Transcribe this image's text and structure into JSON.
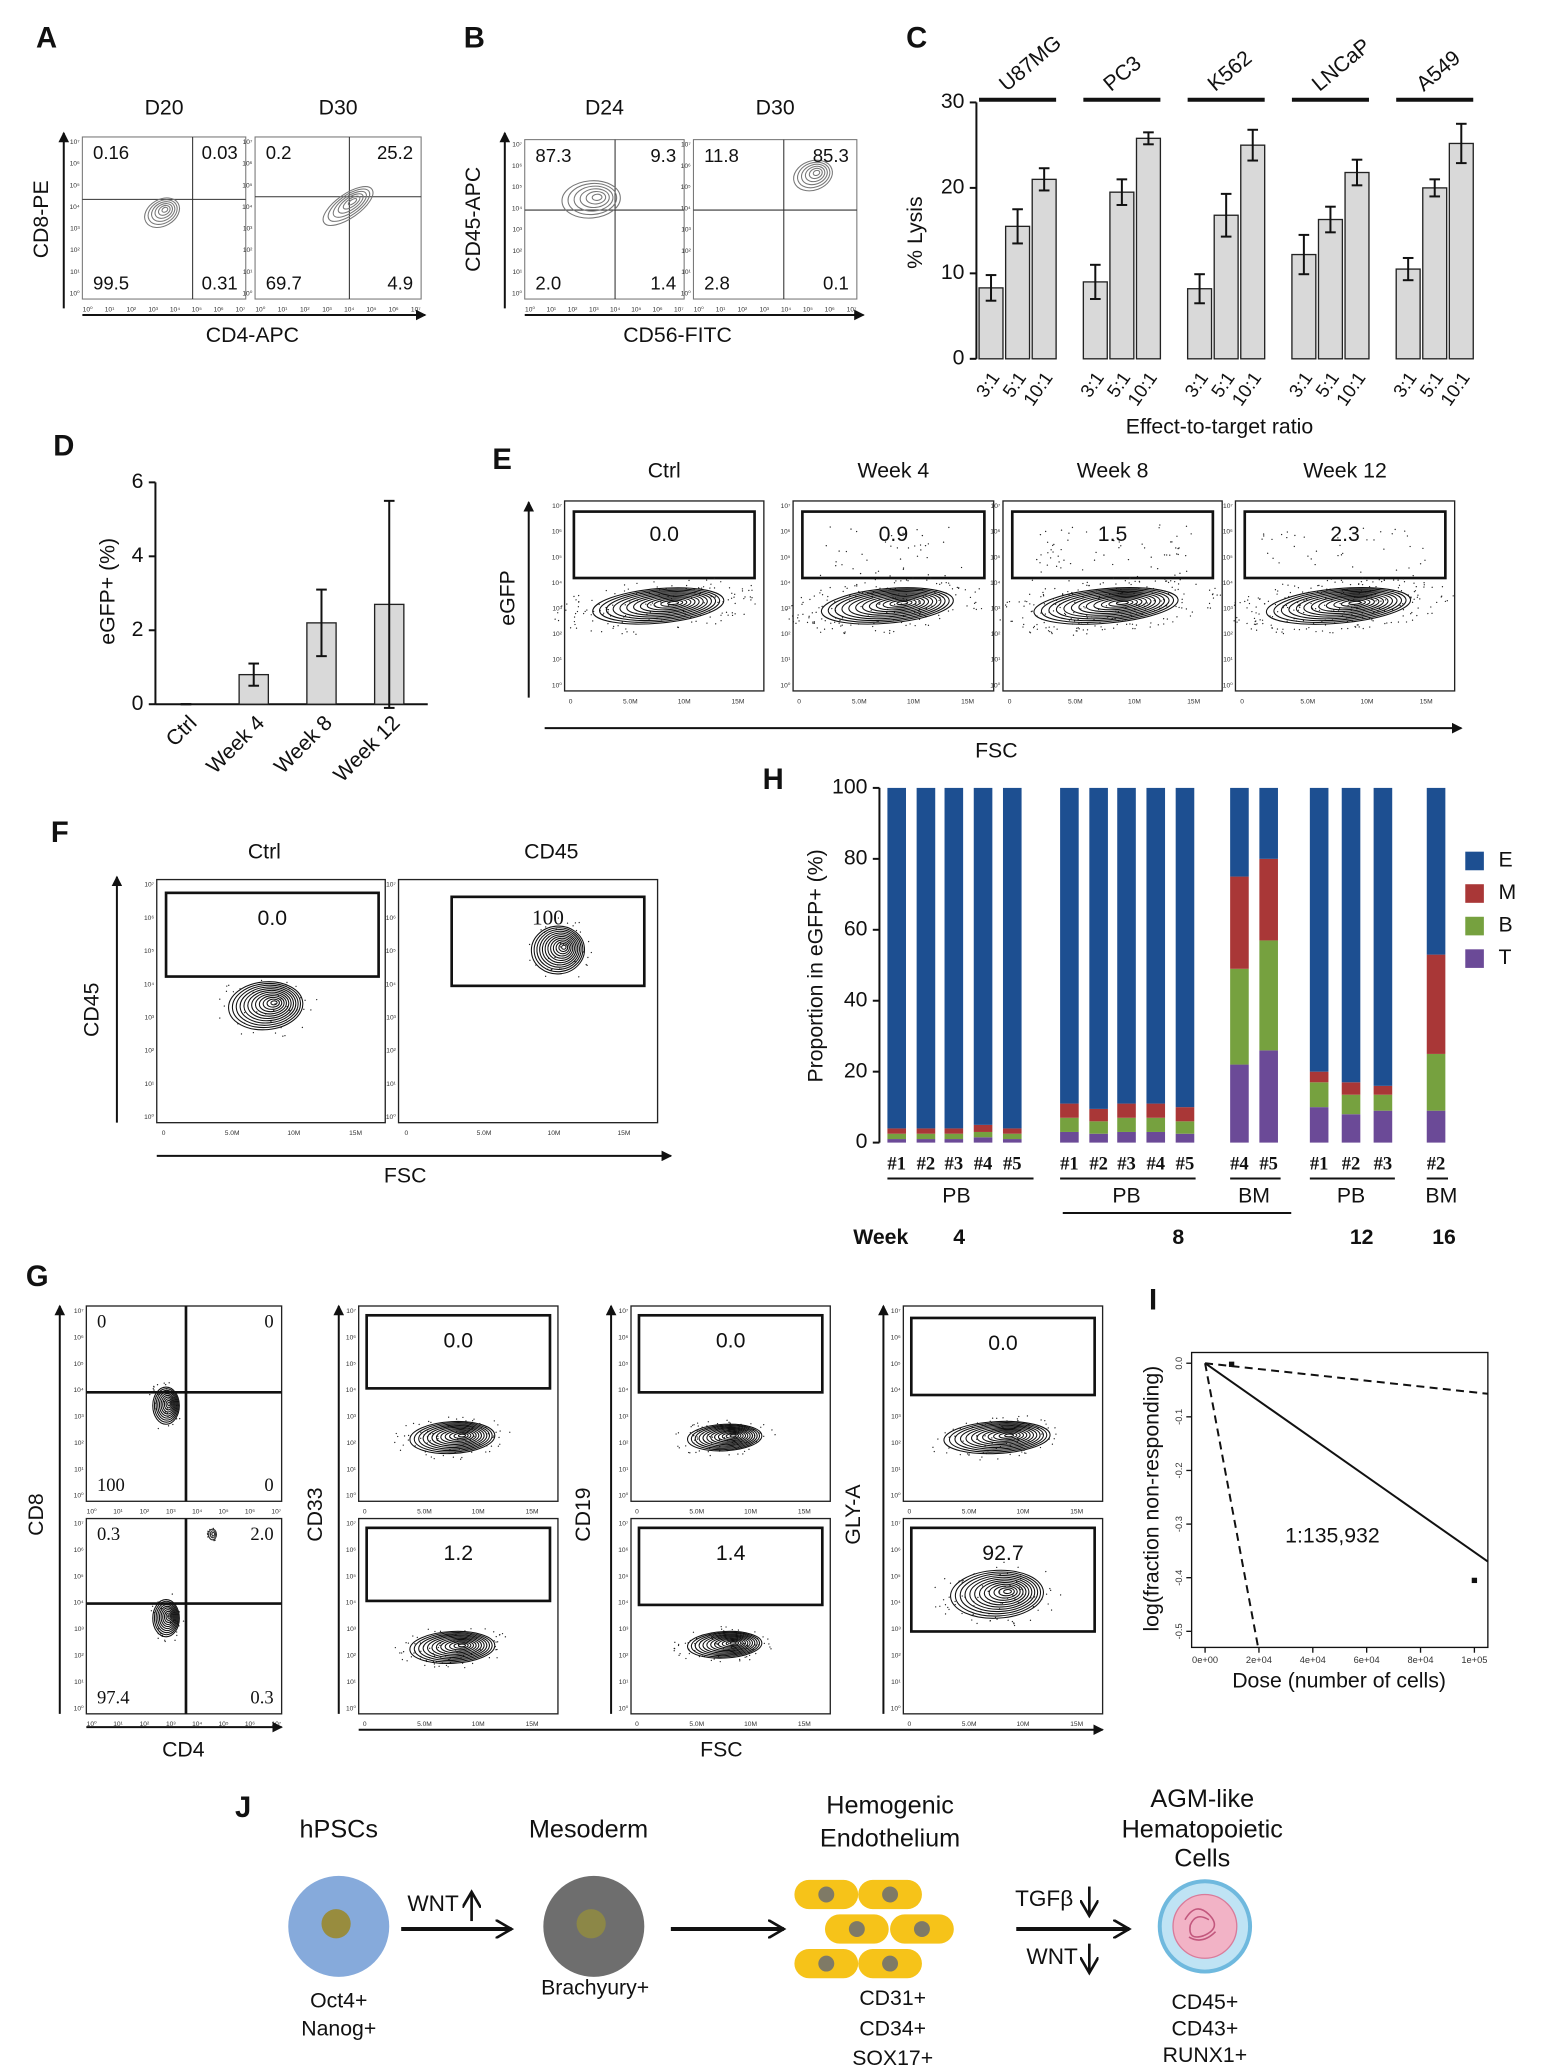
{
  "panel_labels": [
    "A",
    "B",
    "C",
    "D",
    "E",
    "F",
    "G",
    "H",
    "I",
    "J"
  ],
  "flow_ticks": {
    "log": [
      "10⁰",
      "10¹",
      "10²",
      "10³",
      "10⁴",
      "10⁵",
      "10⁶",
      "10⁷"
    ],
    "fsc": [
      "0",
      "5.0M",
      "10M",
      "15M"
    ]
  },
  "panel_a": {
    "titles": [
      "D20",
      "D30"
    ],
    "y_label": "CD8-PE",
    "x_label": "CD4-APC",
    "quadrants": [
      [
        "0.16",
        "0.03",
        "99.5",
        "0.31"
      ],
      [
        "0.2",
        "25.2",
        "69.7",
        "4.9"
      ]
    ]
  },
  "panel_b": {
    "titles": [
      "D24",
      "D30"
    ],
    "y_label": "CD45-APC",
    "x_label": "CD56-FITC",
    "quadrants": [
      [
        "87.3",
        "9.3",
        "2.0",
        "1.4"
      ],
      [
        "11.8",
        "85.3",
        "2.8",
        "0.1"
      ]
    ]
  },
  "panel_e": {
    "titles": [
      "Ctrl",
      "Week 4",
      "Week 8",
      "Week 12"
    ],
    "y_label": "eGFP",
    "x_label": "FSC",
    "gates": [
      "0.0",
      "0.9",
      "1.5",
      "2.3"
    ]
  },
  "panel_f": {
    "titles": [
      "Ctrl",
      "CD45"
    ],
    "y_label": "CD45",
    "x_label": "FSC",
    "gates": [
      "0.0",
      "100"
    ]
  },
  "panel_g": {
    "quadrant_plot": {
      "y_label": "CD8",
      "x_label": "CD4",
      "quadrants": [
        [
          "0",
          "0",
          "100",
          "0"
        ],
        [
          "0.3",
          "2.0",
          "97.4",
          "0.3"
        ]
      ]
    },
    "gate_plots": [
      {
        "y_label": "CD33",
        "gates": [
          "0.0",
          "1.2"
        ]
      },
      {
        "y_label": "CD19",
        "gates": [
          "0.0",
          "1.4"
        ]
      },
      {
        "y_label": "GLY-A",
        "gates": [
          "0.0",
          "92.7"
        ]
      }
    ],
    "x_label": "FSC"
  },
  "panel_j": {
    "stages": [
      {
        "name": [
          "hPSCs"
        ],
        "markers": [
          "Oct4+",
          "Nanog+"
        ]
      },
      {
        "name": [
          "Mesoderm"
        ],
        "markers": [
          "Brachyury+"
        ]
      },
      {
        "name": [
          "Hemogenic",
          "Endothelium"
        ],
        "markers": [
          "CD31+",
          "CD34+",
          "SOX17+"
        ]
      },
      {
        "name": [
          "AGM-like",
          "Hematopoietic",
          "Cells"
        ],
        "markers": [
          "CD45+",
          "CD43+",
          "RUNX1+"
        ]
      }
    ],
    "wnt_up": "WNT",
    "tgfb_down": "TGFβ",
    "wnt_down": "WNT"
  },
  "chart_data": [
    {
      "type": "bar",
      "y_label": "% Lysis",
      "x_label": "Effect-to-target ratio",
      "color": "#d9d9d9",
      "categories": [
        "3:1",
        "5:1",
        "10:1"
      ],
      "series": [
        {
          "name": "U87MG",
          "values": [
            8.3,
            15.5,
            21
          ],
          "errors": [
            1.5,
            2,
            1.3
          ]
        },
        {
          "name": "PC3",
          "values": [
            9,
            19.5,
            25.8
          ],
          "errors": [
            2,
            1.5,
            0.7
          ]
        },
        {
          "name": "K562",
          "values": [
            8.2,
            16.8,
            25
          ],
          "errors": [
            1.7,
            2.5,
            1.8
          ]
        },
        {
          "name": "LNCaP",
          "values": [
            12.2,
            16.3,
            21.8
          ],
          "errors": [
            2.3,
            1.5,
            1.5
          ]
        },
        {
          "name": "A549",
          "values": [
            10.5,
            20,
            25.2
          ],
          "errors": [
            1.3,
            1,
            2.3
          ]
        }
      ],
      "ylim": [
        0,
        30
      ],
      "yticks": [
        0,
        10,
        20,
        30
      ]
    },
    {
      "type": "bar",
      "y_label": "eGFP+ (%)",
      "color": "#d9d9d9",
      "categories": [
        "Ctrl",
        "Week 4",
        "Week 8",
        "Week 12"
      ],
      "values": [
        0,
        0.8,
        2.2,
        2.7
      ],
      "errors": [
        0,
        0.3,
        0.9,
        2.8
      ],
      "ylim": [
        0,
        6
      ],
      "yticks": [
        0,
        2,
        4,
        6
      ]
    },
    {
      "type": "stacked_bar",
      "y_label": "Proportion in eGFP+ (%)",
      "categories": [
        "#1",
        "#2",
        "#3",
        "#4",
        "#5",
        "#1",
        "#2",
        "#3",
        "#4",
        "#5",
        "#4",
        "#5",
        "#1",
        "#2",
        "#3",
        "#2"
      ],
      "series": [
        {
          "name": "T",
          "color": "#6b4a97",
          "values": [
            1,
            1,
            1,
            1.5,
            1,
            3,
            2.5,
            3,
            3,
            2.5,
            22,
            26,
            10,
            8,
            9,
            9
          ]
        },
        {
          "name": "B",
          "color": "#76a13f",
          "values": [
            1.5,
            1.5,
            1.5,
            1.5,
            1.5,
            4,
            3.5,
            4,
            4,
            3.5,
            27,
            31,
            7,
            5.5,
            4.5,
            16
          ]
        },
        {
          "name": "M",
          "color": "#a93737",
          "values": [
            1.5,
            1.5,
            1.5,
            2,
            1.5,
            4,
            3.5,
            4,
            4,
            4,
            26,
            23,
            3,
            3.5,
            2.5,
            28
          ]
        },
        {
          "name": "E",
          "color": "#1d4f91",
          "values": [
            96,
            96,
            96,
            95,
            96,
            89,
            90.5,
            89,
            89,
            90,
            25,
            20,
            80,
            83,
            84,
            47
          ]
        }
      ],
      "group_labels": [
        "PB",
        "PB",
        "BM",
        "PB",
        "BM"
      ],
      "week_title": "Week",
      "weeks": [
        4,
        8,
        12,
        16
      ],
      "ylim": [
        0,
        100
      ],
      "yticks": [
        0,
        20,
        40,
        60,
        80,
        100
      ],
      "legend": "right"
    },
    {
      "type": "line",
      "x_label": "Dose (number of cells)",
      "y_label": "log(fraction non-responding)",
      "xlim": [
        -5000,
        105000
      ],
      "ylim": [
        -0.53,
        0.02
      ],
      "xticks": [
        {
          "value": 0,
          "label": "0e+00"
        },
        {
          "value": 20000,
          "label": "2e+04"
        },
        {
          "value": 40000,
          "label": "4e+04"
        },
        {
          "value": 60000,
          "label": "6e+04"
        },
        {
          "value": 80000,
          "label": "8e+04"
        },
        {
          "value": 100000,
          "label": "1e+05"
        }
      ],
      "yticks": [
        {
          "value": 0,
          "label": "0.0"
        },
        -0.1,
        -0.2,
        -0.3,
        -0.4,
        -0.5
      ],
      "series": [
        {
          "x": [
            0,
            105000
          ],
          "values": [
            0,
            -0.37
          ],
          "dashed": false
        },
        {
          "x": [
            0,
            105000
          ],
          "values": [
            0,
            -0.057
          ],
          "dashed": true
        },
        {
          "x": [
            0,
            19700
          ],
          "values": [
            0,
            -0.53
          ],
          "dashed": true
        }
      ],
      "points": {
        "x": [
          9850,
          100000
        ],
        "values": [
          -0.002,
          -0.405
        ]
      },
      "annotation": "1:135,932"
    }
  ]
}
